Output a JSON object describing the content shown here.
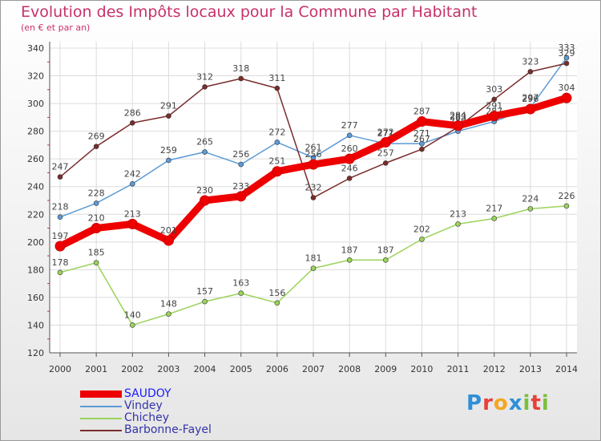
{
  "header": {
    "title": "Evolution des Impôts locaux pour la Commune par Habitant",
    "subtitle": "(en € et par an)"
  },
  "logo": {
    "letters": [
      "P",
      "r",
      "o",
      "x",
      "i",
      "t",
      "i"
    ],
    "colors": [
      "#2f8fd8",
      "#e8403a",
      "#f5a623",
      "#2f8fd8",
      "#7cbf3a",
      "#e8403a",
      "#7cbf3a"
    ]
  },
  "chart_data": {
    "type": "line",
    "title": "Evolution des Impôts locaux pour la Commune par Habitant",
    "subtitle": "(en € et par an)",
    "xlabel": "",
    "ylabel": "",
    "x": [
      "2000",
      "2001",
      "2002",
      "2003",
      "2004",
      "2005",
      "2006",
      "2007",
      "2008",
      "2009",
      "2010",
      "2011",
      "2012",
      "2013",
      "2014"
    ],
    "yticks": [
      120,
      140,
      160,
      180,
      200,
      220,
      240,
      260,
      280,
      300,
      320,
      340
    ],
    "ylim": [
      120,
      340
    ],
    "grid": true,
    "legend_position": "bottom-left",
    "series": [
      {
        "name": "SAUDOY",
        "color": "#ee0000",
        "bold": true,
        "values": [
          197,
          210,
          213,
          201,
          230,
          233,
          251,
          256,
          260,
          272,
          287,
          284,
          291,
          296,
          304
        ]
      },
      {
        "name": "Vindey",
        "color": "#5b9bd5",
        "bold": false,
        "values": [
          218,
          228,
          242,
          259,
          265,
          256,
          272,
          261,
          277,
          271,
          271,
          280,
          287,
          297,
          333
        ]
      },
      {
        "name": "Chichey",
        "color": "#9bd35a",
        "bold": false,
        "values": [
          178,
          185,
          140,
          148,
          157,
          163,
          156,
          181,
          187,
          187,
          202,
          213,
          217,
          224,
          226
        ]
      },
      {
        "name": "Barbonne-Fayel",
        "color": "#7a2c2c",
        "bold": false,
        "values": [
          247,
          269,
          286,
          291,
          312,
          318,
          311,
          232,
          246,
          257,
          267,
          283,
          303,
          323,
          329
        ]
      }
    ]
  }
}
